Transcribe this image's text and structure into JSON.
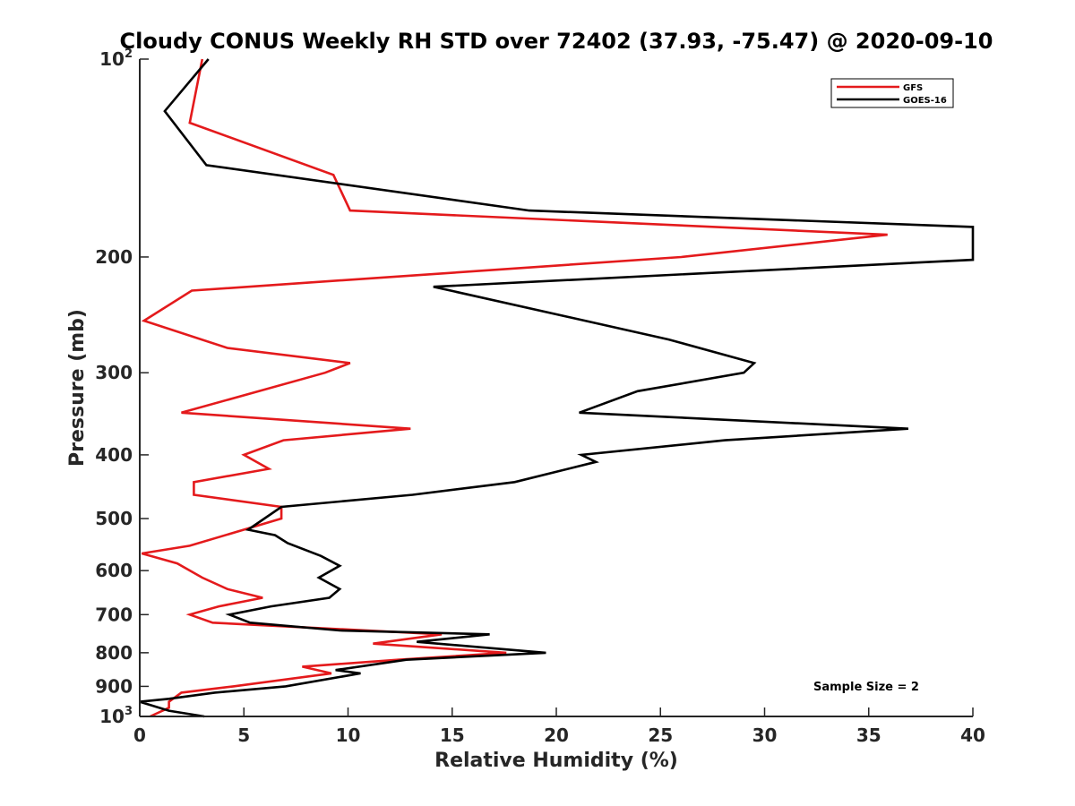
{
  "chart_data": {
    "type": "line",
    "title": "Cloudy CONUS Weekly RH STD over 72402 (37.93, -75.47) @ 2020-09-10",
    "xlabel": "Relative Humidity (%)",
    "ylabel": "Pressure (mb)",
    "xlim": [
      0,
      40
    ],
    "ylim": [
      100,
      1000
    ],
    "y_scale": "log",
    "y_reversed": true,
    "x_ticks": [
      "0",
      "5",
      "10",
      "15",
      "20",
      "25",
      "30",
      "35",
      "40"
    ],
    "y_ticks": [
      {
        "value": 100,
        "base": "10",
        "sup": "2"
      },
      {
        "value": 200,
        "label": "200"
      },
      {
        "value": 300,
        "label": "300"
      },
      {
        "value": 400,
        "label": "400"
      },
      {
        "value": 500,
        "label": "500"
      },
      {
        "value": 600,
        "label": "600"
      },
      {
        "value": 700,
        "label": "700"
      },
      {
        "value": 800,
        "label": "800"
      },
      {
        "value": 900,
        "label": "900"
      },
      {
        "value": 1000,
        "base": "10",
        "sup": "3"
      }
    ],
    "legend_position": "top-right",
    "grid": false,
    "annotation": "Sample Size = 2",
    "series": [
      {
        "name": "GFS",
        "color": "#e41a1c",
        "points": [
          [
            3.0,
            100
          ],
          [
            2.4,
            125
          ],
          [
            9.3,
            150
          ],
          [
            10.1,
            170
          ],
          [
            35.9,
            185
          ],
          [
            26.0,
            200
          ],
          [
            2.5,
            225
          ],
          [
            0.2,
            250
          ],
          [
            4.2,
            275
          ],
          [
            10.1,
            290
          ],
          [
            8.9,
            300
          ],
          [
            2.0,
            345
          ],
          [
            13.0,
            365
          ],
          [
            6.9,
            380
          ],
          [
            5.0,
            400
          ],
          [
            6.2,
            420
          ],
          [
            2.6,
            440
          ],
          [
            2.6,
            460
          ],
          [
            6.8,
            480
          ],
          [
            6.8,
            500
          ],
          [
            2.4,
            550
          ],
          [
            0.1,
            565
          ],
          [
            1.8,
            585
          ],
          [
            3.0,
            615
          ],
          [
            4.2,
            640
          ],
          [
            5.9,
            660
          ],
          [
            3.8,
            680
          ],
          [
            2.4,
            700
          ],
          [
            3.5,
            720
          ],
          [
            14.5,
            750
          ],
          [
            11.2,
            775
          ],
          [
            17.6,
            800
          ],
          [
            12.4,
            820
          ],
          [
            7.8,
            840
          ],
          [
            9.2,
            860
          ],
          [
            4.5,
            900
          ],
          [
            2.0,
            920
          ],
          [
            1.4,
            950
          ],
          [
            1.4,
            970
          ],
          [
            0.5,
            1000
          ]
        ]
      },
      {
        "name": "GOES-16",
        "color": "#000000",
        "points": [
          [
            3.3,
            100
          ],
          [
            1.2,
            120
          ],
          [
            3.2,
            145
          ],
          [
            18.7,
            170
          ],
          [
            40.0,
            180
          ],
          [
            40.0,
            202
          ],
          [
            14.1,
            222
          ],
          [
            25.4,
            267
          ],
          [
            29.5,
            290
          ],
          [
            29.0,
            300
          ],
          [
            23.9,
            320
          ],
          [
            21.1,
            345
          ],
          [
            36.9,
            365
          ],
          [
            28.1,
            380
          ],
          [
            21.2,
            400
          ],
          [
            21.9,
            410
          ],
          [
            18.0,
            440
          ],
          [
            13.1,
            460
          ],
          [
            6.8,
            480
          ],
          [
            5.2,
            520
          ],
          [
            6.5,
            530
          ],
          [
            7.1,
            545
          ],
          [
            8.7,
            570
          ],
          [
            9.6,
            590
          ],
          [
            8.6,
            615
          ],
          [
            9.6,
            640
          ],
          [
            9.1,
            660
          ],
          [
            6.3,
            680
          ],
          [
            4.3,
            700
          ],
          [
            5.3,
            720
          ],
          [
            9.6,
            740
          ],
          [
            16.8,
            750
          ],
          [
            13.3,
            770
          ],
          [
            19.5,
            800
          ],
          [
            12.8,
            820
          ],
          [
            9.4,
            850
          ],
          [
            10.6,
            860
          ],
          [
            7.0,
            900
          ],
          [
            3.6,
            920
          ],
          [
            1.4,
            940
          ],
          [
            0.0,
            950
          ],
          [
            1.4,
            980
          ],
          [
            3.1,
            1000
          ]
        ]
      }
    ]
  }
}
